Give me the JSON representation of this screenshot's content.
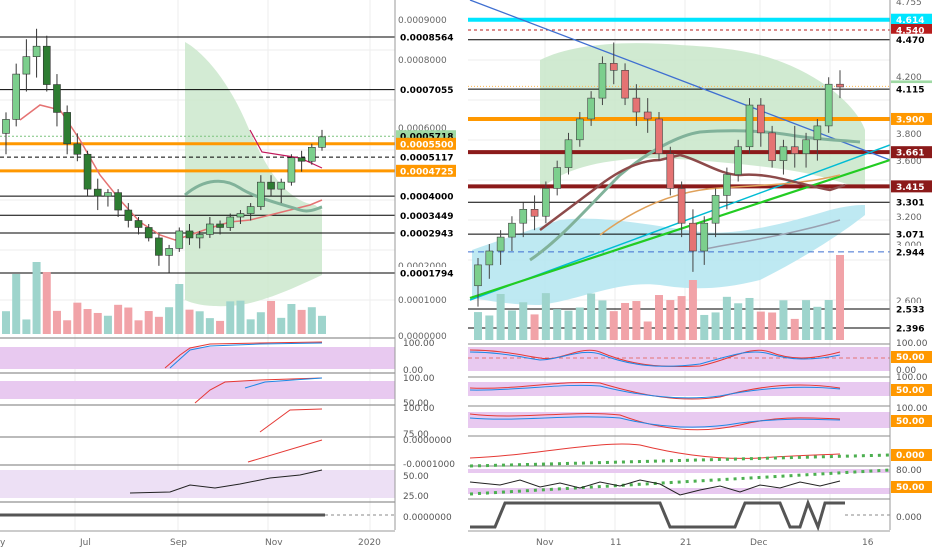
{
  "chart_data": [
    {
      "type": "candlestick",
      "panel": "left",
      "x_ticks": [
        "y",
        "Jul",
        "Sep",
        "Nov",
        "2020"
      ],
      "price_axis_ticks": [
        "0.0009000",
        "0.0008000",
        "0.0006000",
        "0.0003000",
        "0.0002000",
        "0.0001000",
        "0.0000000"
      ],
      "price_level_labels": [
        {
          "value": "0.0008564",
          "color": "#000000"
        },
        {
          "value": "0.0007055",
          "color": "#000000"
        },
        {
          "value": "0.0005718",
          "color": "#9fd9a4"
        },
        {
          "value": "0.0005500",
          "color": "#ff9800"
        },
        {
          "value": "0.0005117",
          "color": "#000000"
        },
        {
          "value": "0.0004725",
          "color": "#ff9800"
        },
        {
          "value": "0.0004000",
          "color": "#000000"
        },
        {
          "value": "0.0003449",
          "color": "#000000"
        },
        {
          "value": "0.0002943",
          "color": "#000000"
        },
        {
          "value": "0.0001794",
          "color": "#000000"
        }
      ],
      "indicator_axis_labels": [
        [
          "100.00",
          "0.00"
        ],
        [
          "100.00",
          "50.00"
        ],
        [
          "100.00",
          "75.00"
        ],
        [
          "0.0000000",
          "-0.0001000"
        ],
        [
          "50.00",
          "25.00"
        ],
        [
          "0.0000000"
        ]
      ],
      "candles": [
        [
          0.00058,
          0.00064,
          0.00052,
          0.00062
        ],
        [
          0.00062,
          0.00078,
          0.0006,
          0.00075
        ],
        [
          0.00075,
          0.00085,
          0.0007,
          0.0008
        ],
        [
          0.0008,
          0.00088,
          0.00074,
          0.00083
        ],
        [
          0.00083,
          0.00086,
          0.0007,
          0.00072
        ],
        [
          0.00072,
          0.00075,
          0.0006,
          0.00064
        ],
        [
          0.00064,
          0.00066,
          0.00052,
          0.00055
        ],
        [
          0.00055,
          0.00058,
          0.0005,
          0.00052
        ],
        [
          0.00052,
          0.00053,
          0.0004,
          0.00042
        ],
        [
          0.00042,
          0.00045,
          0.00036,
          0.0004
        ],
        [
          0.0004,
          0.00042,
          0.00037,
          0.00041
        ],
        [
          0.00041,
          0.00042,
          0.00034,
          0.00036
        ],
        [
          0.00036,
          0.00038,
          0.00031,
          0.00033
        ],
        [
          0.00033,
          0.00034,
          0.00029,
          0.00031
        ],
        [
          0.00031,
          0.00032,
          0.00027,
          0.00028
        ],
        [
          0.00028,
          0.00029,
          0.0002,
          0.00023
        ],
        [
          0.00023,
          0.00026,
          0.00018,
          0.00025
        ],
        [
          0.00025,
          0.00031,
          0.00024,
          0.0003
        ],
        [
          0.0003,
          0.00032,
          0.00026,
          0.00028
        ],
        [
          0.00028,
          0.0003,
          0.00025,
          0.00029
        ],
        [
          0.00029,
          0.00034,
          0.00028,
          0.00032
        ],
        [
          0.00032,
          0.00033,
          0.00029,
          0.00031
        ],
        [
          0.00031,
          0.00035,
          0.0003,
          0.00034
        ],
        [
          0.00034,
          0.00036,
          0.00032,
          0.00035
        ],
        [
          0.00035,
          0.00038,
          0.00033,
          0.00037
        ],
        [
          0.00037,
          0.00046,
          0.00036,
          0.00044
        ],
        [
          0.00044,
          0.00046,
          0.0004,
          0.00042
        ],
        [
          0.00042,
          0.00045,
          0.00038,
          0.00044
        ],
        [
          0.00044,
          0.00052,
          0.00043,
          0.00051
        ],
        [
          0.00051,
          0.00053,
          0.00047,
          0.0005
        ],
        [
          0.0005,
          0.00055,
          0.00049,
          0.00054
        ],
        [
          0.00054,
          0.00059,
          0.00053,
          0.00057
        ]
      ]
    },
    {
      "type": "candlestick",
      "panel": "right",
      "x_ticks": [
        "Nov",
        "11",
        "21",
        "Dec",
        "16"
      ],
      "price_axis_ticks": [
        "4.755",
        "4.200",
        "3.800",
        "3.600",
        "3.200",
        "3.000",
        "2.600"
      ],
      "price_level_labels": [
        {
          "value": "4.614",
          "color": "#00e5ff"
        },
        {
          "value": "4.540",
          "color": "#b71c1c"
        },
        {
          "value": "4.470",
          "color": "#000000"
        },
        {
          "value": "4.134",
          "color": "#9fd9a4"
        },
        {
          "value": "4.115",
          "color": "#000000"
        },
        {
          "value": "3.900",
          "color": "#ff9800"
        },
        {
          "value": "3.661",
          "color": "#8b1a1a"
        },
        {
          "value": "3.415",
          "color": "#8b1a1a"
        },
        {
          "value": "3.301",
          "color": "#000000"
        },
        {
          "value": "3.071",
          "color": "#000000"
        },
        {
          "value": "2.944",
          "color": "#000000"
        },
        {
          "value": "2.533",
          "color": "#000000"
        },
        {
          "value": "2.396",
          "color": "#000000"
        }
      ],
      "indicator_axis_labels": [
        [
          "100.00",
          "50.00",
          "0.00"
        ],
        [
          "100.00",
          "50.00"
        ],
        [
          "100.00",
          "50.00"
        ],
        [
          "0.000"
        ],
        [
          "80.00",
          "50.00"
        ],
        [
          "0.000"
        ]
      ],
      "candles": [
        [
          2.7,
          2.9,
          2.55,
          2.85
        ],
        [
          2.85,
          3.0,
          2.75,
          2.95
        ],
        [
          2.95,
          3.1,
          2.85,
          3.05
        ],
        [
          3.05,
          3.2,
          2.95,
          3.15
        ],
        [
          3.15,
          3.3,
          3.05,
          3.25
        ],
        [
          3.25,
          3.35,
          3.1,
          3.2
        ],
        [
          3.2,
          3.45,
          3.15,
          3.4
        ],
        [
          3.4,
          3.6,
          3.35,
          3.55
        ],
        [
          3.55,
          3.8,
          3.5,
          3.75
        ],
        [
          3.75,
          3.95,
          3.7,
          3.9
        ],
        [
          3.9,
          4.1,
          3.85,
          4.05
        ],
        [
          4.05,
          4.35,
          4.0,
          4.3
        ],
        [
          4.3,
          4.45,
          4.15,
          4.25
        ],
        [
          4.25,
          4.3,
          4.0,
          4.05
        ],
        [
          4.05,
          4.15,
          3.85,
          3.95
        ],
        [
          3.95,
          4.05,
          3.8,
          3.9
        ],
        [
          3.9,
          3.95,
          3.6,
          3.65
        ],
        [
          3.65,
          3.7,
          3.35,
          3.4
        ],
        [
          3.4,
          3.45,
          3.05,
          3.15
        ],
        [
          3.15,
          3.25,
          2.8,
          2.95
        ],
        [
          2.95,
          3.2,
          2.85,
          3.15
        ],
        [
          3.15,
          3.4,
          3.05,
          3.35
        ],
        [
          3.35,
          3.55,
          3.25,
          3.5
        ],
        [
          3.5,
          3.75,
          3.45,
          3.7
        ],
        [
          3.7,
          4.05,
          3.65,
          4.0
        ],
        [
          4.0,
          4.05,
          3.7,
          3.8
        ],
        [
          3.8,
          3.85,
          3.55,
          3.6
        ],
        [
          3.6,
          3.75,
          3.5,
          3.7
        ],
        [
          3.7,
          3.85,
          3.55,
          3.65
        ],
        [
          3.65,
          3.8,
          3.55,
          3.75
        ],
        [
          3.75,
          3.9,
          3.6,
          3.85
        ],
        [
          3.85,
          4.2,
          3.8,
          4.15
        ],
        [
          4.15,
          4.25,
          4.05,
          4.13
        ]
      ]
    }
  ]
}
